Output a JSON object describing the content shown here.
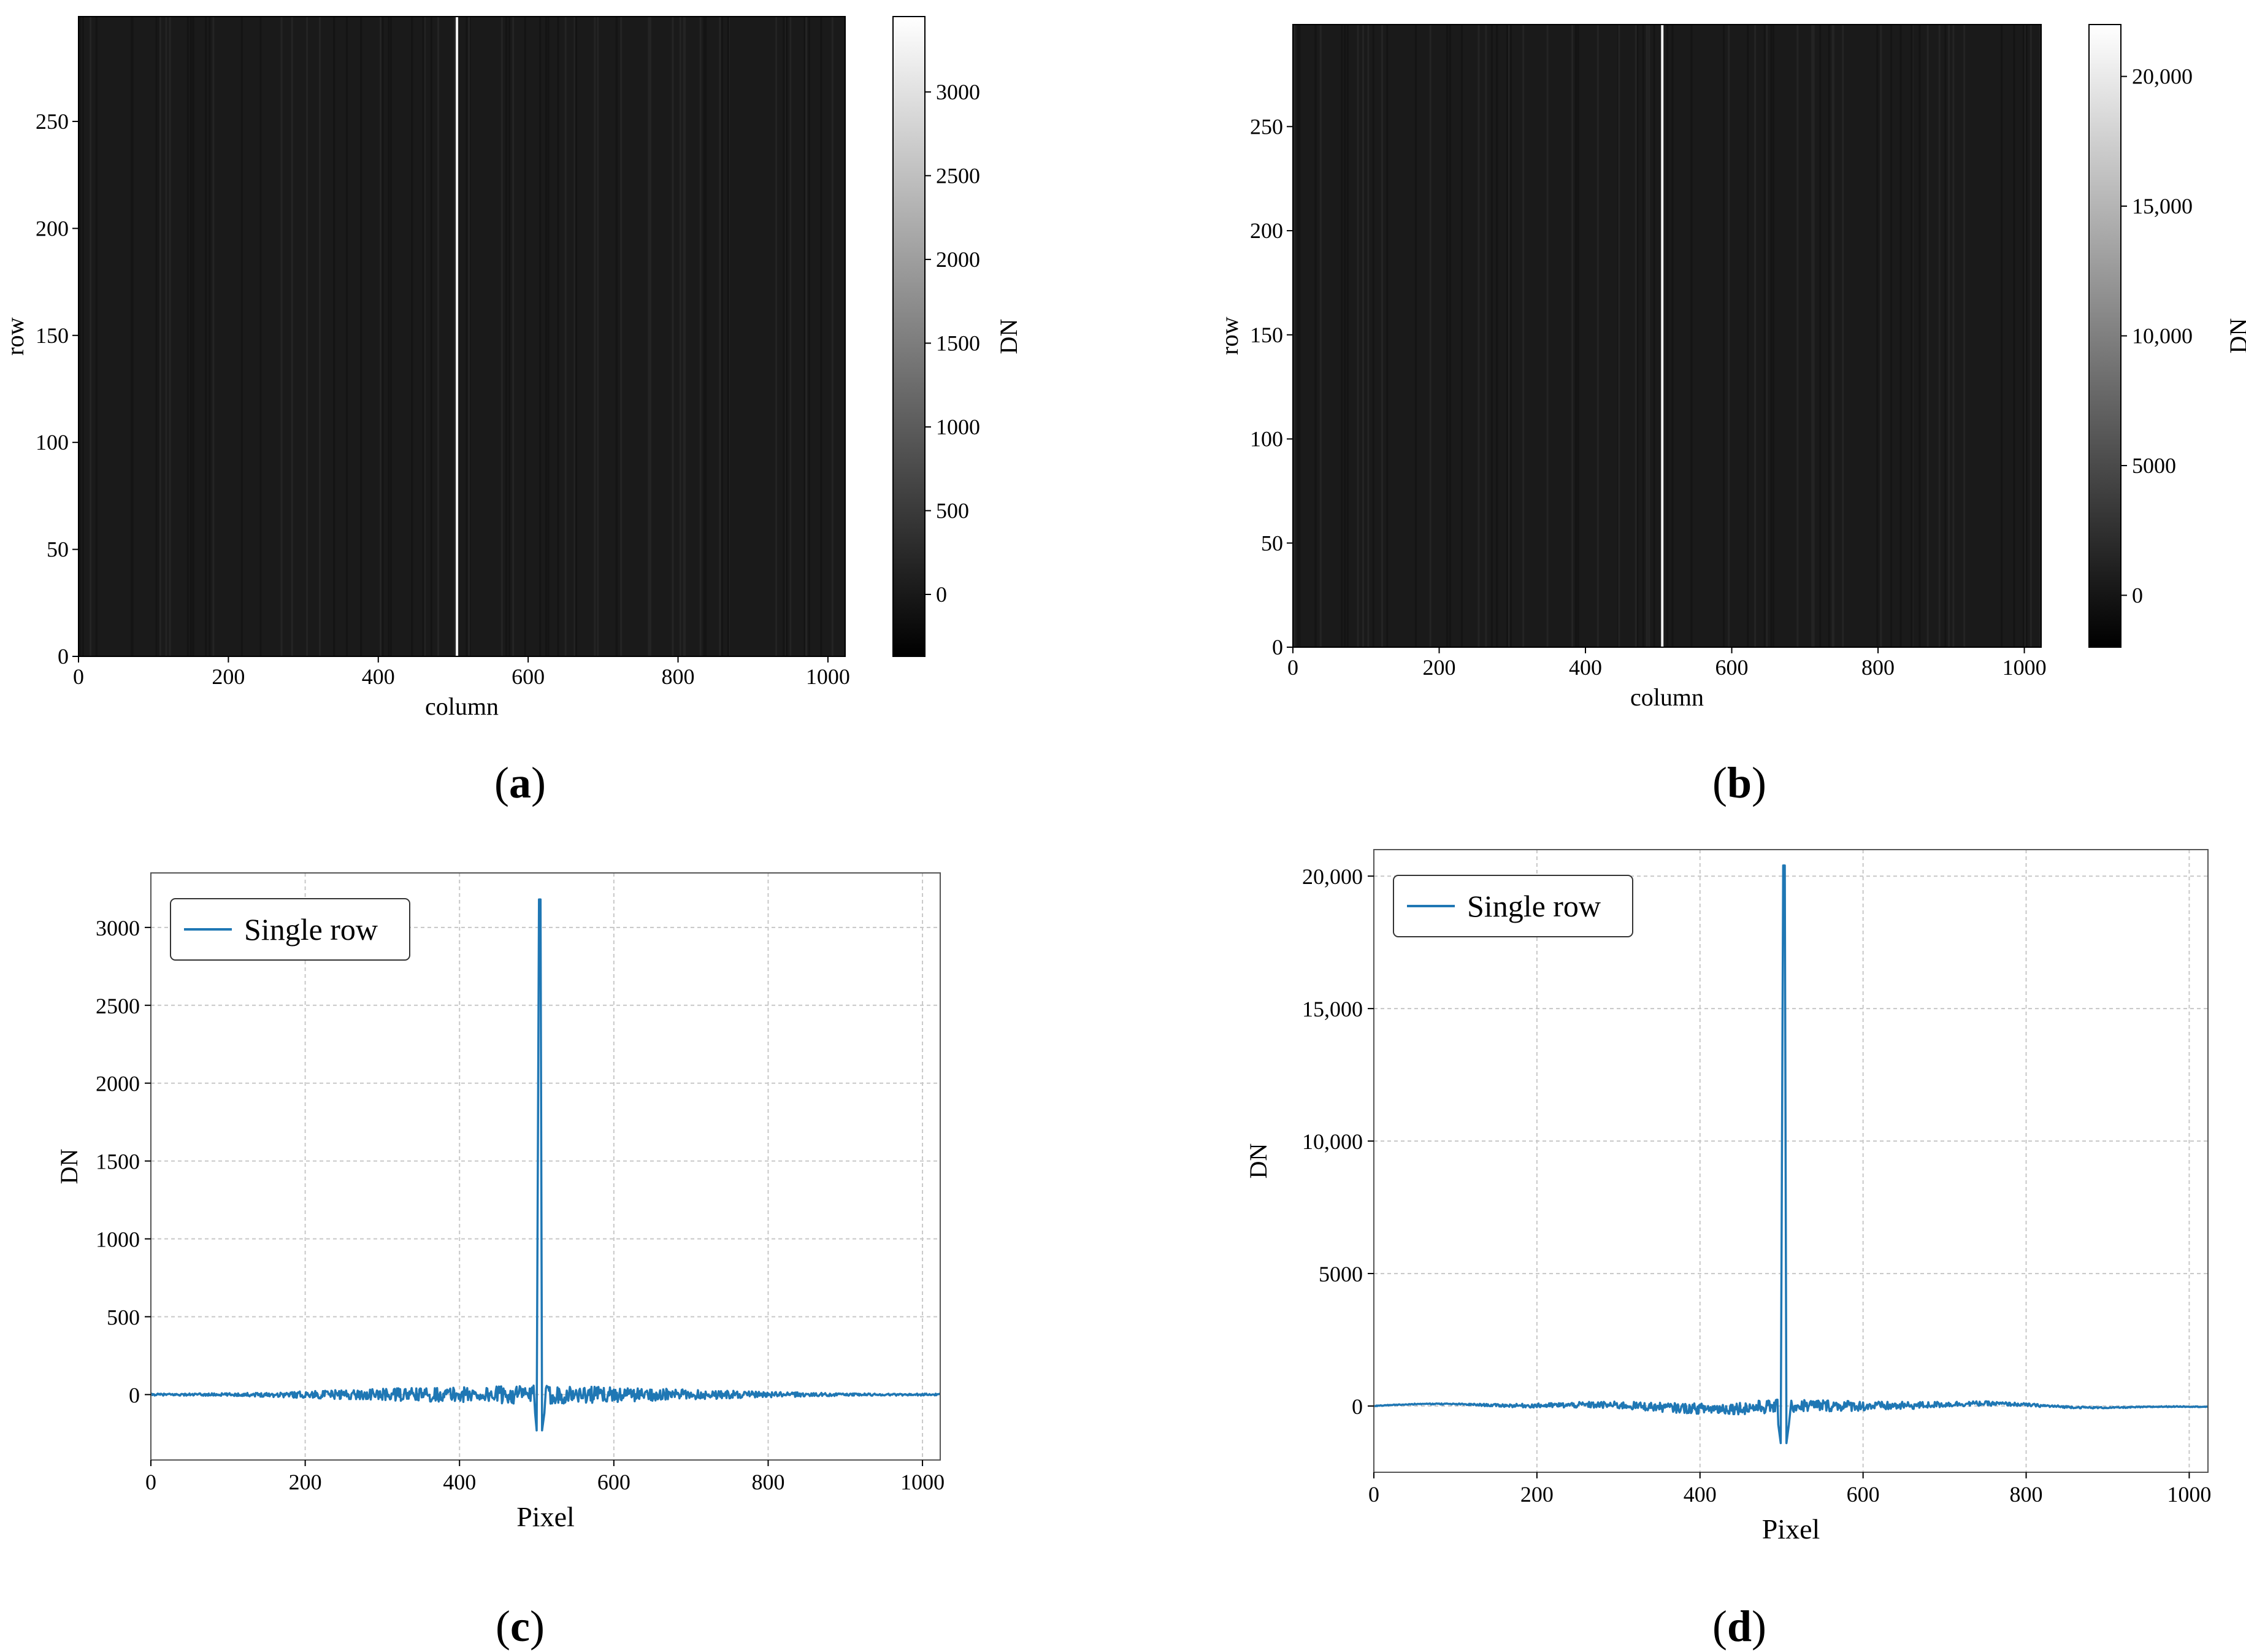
{
  "chart_data": [
    {
      "id": "a",
      "type": "heatmap",
      "caption_letter": "a",
      "xlabel": "column",
      "ylabel": "row",
      "xlim": [
        0,
        1023
      ],
      "ylim": [
        0,
        299
      ],
      "xticks": [
        0,
        200,
        400,
        600,
        800,
        1000
      ],
      "xtick_labels": [
        "0",
        "200",
        "400",
        "600",
        "800",
        "1000"
      ],
      "yticks": [
        0,
        50,
        100,
        150,
        200,
        250
      ],
      "ytick_labels": [
        "0",
        "50",
        "100",
        "150",
        "200",
        "250"
      ],
      "bright_stripe_column": 505,
      "colorbar": {
        "label": "DN",
        "range": [
          -370,
          3450
        ],
        "ticks": [
          0,
          500,
          1000,
          1500,
          2000,
          2500,
          3000
        ],
        "tick_labels": [
          "0",
          "500",
          "1000",
          "1500",
          "2000",
          "2500",
          "3000"
        ]
      }
    },
    {
      "id": "b",
      "type": "heatmap",
      "caption_letter": "b",
      "xlabel": "column",
      "ylabel": "row",
      "xlim": [
        0,
        1023
      ],
      "ylim": [
        0,
        299
      ],
      "xticks": [
        0,
        200,
        400,
        600,
        800,
        1000
      ],
      "xtick_labels": [
        "0",
        "200",
        "400",
        "600",
        "800",
        "1000"
      ],
      "yticks": [
        0,
        50,
        100,
        150,
        200,
        250
      ],
      "ytick_labels": [
        "0",
        "50",
        "100",
        "150",
        "200",
        "250"
      ],
      "bright_stripe_column": 505,
      "colorbar": {
        "label": "DN",
        "range": [
          -2000,
          22000
        ],
        "ticks": [
          0,
          5000,
          10000,
          15000,
          20000
        ],
        "tick_labels": [
          "0",
          "5000",
          "10,000",
          "15,000",
          "20,000"
        ]
      }
    },
    {
      "id": "c",
      "type": "line",
      "caption_letter": "c",
      "xlabel": "Pixel",
      "ylabel": "DN",
      "xlim": [
        0,
        1023
      ],
      "ylim": [
        -420,
        3350
      ],
      "xticks": [
        0,
        200,
        400,
        600,
        800,
        1000
      ],
      "xtick_labels": [
        "0",
        "200",
        "400",
        "600",
        "800",
        "1000"
      ],
      "yticks": [
        0,
        500,
        1000,
        1500,
        2000,
        2500,
        3000
      ],
      "ytick_labels": [
        "0",
        "500",
        "1000",
        "1500",
        "2000",
        "2500",
        "3000"
      ],
      "grid": true,
      "legend_position": "top-left",
      "series": [
        {
          "name": "Single row",
          "color": "#1f77b4",
          "noise_envelope": {
            "x": [
              0,
              120,
              200,
              300,
              400,
              480,
              540,
              620,
              700,
              800,
              900,
              1023
            ],
            "amplitude": [
              6,
              10,
              22,
              38,
              50,
              60,
              58,
              45,
              32,
              18,
              8,
              6
            ]
          },
          "spike": {
            "x": [
              498,
              500,
              503,
              505,
              507,
              510,
              512
            ],
            "y": [
              -120,
              -230,
              3180,
              3180,
              -230,
              -120,
              40
            ]
          }
        }
      ]
    },
    {
      "id": "d",
      "type": "line",
      "caption_letter": "d",
      "xlabel": "Pixel",
      "ylabel": "DN",
      "xlim": [
        0,
        1023
      ],
      "ylim": [
        -2500,
        21000
      ],
      "xticks": [
        0,
        200,
        400,
        600,
        800,
        1000
      ],
      "xtick_labels": [
        "0",
        "200",
        "400",
        "600",
        "800",
        "1000"
      ],
      "yticks": [
        0,
        5000,
        10000,
        15000,
        20000
      ],
      "ytick_labels": [
        "0",
        "5000",
        "10,000",
        "15,000",
        "20,000"
      ],
      "grid": true,
      "legend_position": "top-left",
      "series": [
        {
          "name": "Single row",
          "color": "#1f77b4",
          "noise_envelope": {
            "x": [
              0,
              100,
              200,
              300,
              400,
              480,
              540,
              620,
              700,
              800,
              900,
              1023
            ],
            "amplitude": [
              15,
              25,
              80,
              140,
              200,
              260,
              240,
              170,
              110,
              60,
              25,
              15
            ]
          },
          "spike": {
            "x": [
              496,
              499,
              502,
              504,
              506,
              509,
              512
            ],
            "y": [
              -700,
              -1400,
              20400,
              20400,
              -1400,
              -700,
              200
            ]
          }
        }
      ]
    }
  ],
  "captions": {
    "a": {
      "open": "(",
      "letter": "a",
      "close": ")"
    },
    "b": {
      "open": "(",
      "letter": "b",
      "close": ")"
    },
    "c": {
      "open": "(",
      "letter": "c",
      "close": ")"
    },
    "d": {
      "open": "(",
      "letter": "d",
      "close": ")"
    }
  },
  "colors": {
    "series": "#1f77b4",
    "grid": "#c8c8c8",
    "image_bg": "#1a1a1a",
    "stripe": "#f2f2f2"
  }
}
